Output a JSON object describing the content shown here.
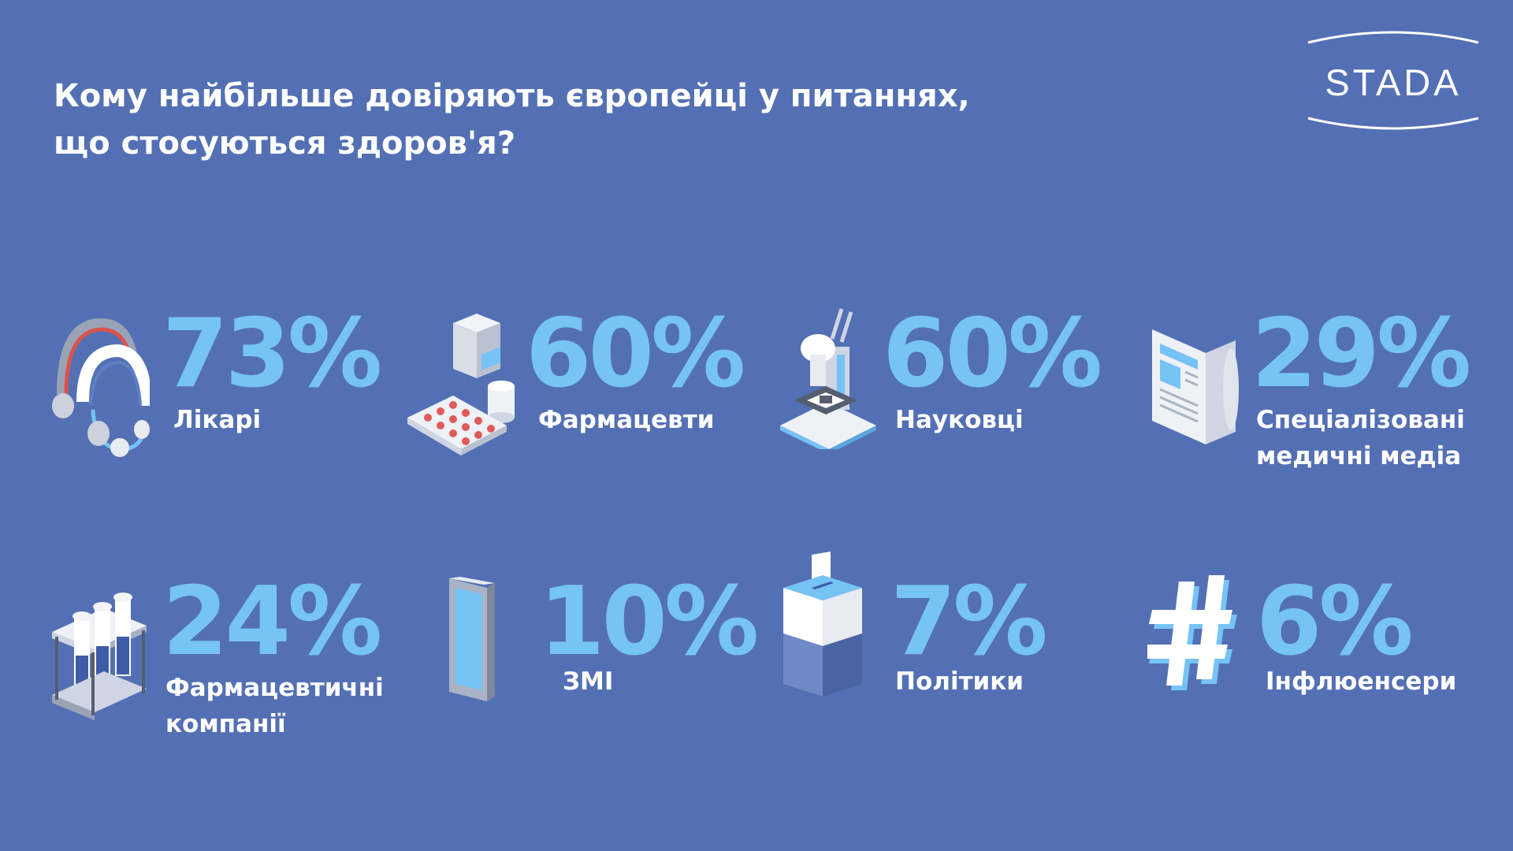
{
  "title": {
    "line1": "Кому найбільше довіряють європейці у питаннях,",
    "line2": "що стосуються здоров'я?"
  },
  "logo": {
    "text": "STADA"
  },
  "colors": {
    "background": "#5470b4",
    "percent": "#76c3f5",
    "text": "#ffffff"
  },
  "stats": [
    {
      "percent": "73%",
      "value": 73,
      "label_lines": [
        "Лікарі"
      ],
      "icon": "headphones-icon"
    },
    {
      "percent": "60%",
      "value": 60,
      "label_lines": [
        "Фармацевти"
      ],
      "icon": "pills-box-icon"
    },
    {
      "percent": "60%",
      "value": 60,
      "label_lines": [
        "Науковці"
      ],
      "icon": "microscope-icon"
    },
    {
      "percent": "29%",
      "value": 29,
      "label_lines": [
        "Спеціалізовані",
        "медичні медіа"
      ],
      "icon": "newspaper-icon"
    },
    {
      "percent": "24%",
      "value": 24,
      "label_lines": [
        "Фармацевтичні",
        "компанії"
      ],
      "icon": "test-tubes-icon"
    },
    {
      "percent": "10%",
      "value": 10,
      "label_lines": [
        "ЗМІ"
      ],
      "icon": "smartphone-icon"
    },
    {
      "percent": "7%",
      "value": 7,
      "label_lines": [
        "Політики"
      ],
      "icon": "ballot-box-icon"
    },
    {
      "percent": "6%",
      "value": 6,
      "label_lines": [
        "Інфлюенсери"
      ],
      "icon": "hashtag-icon"
    }
  ]
}
